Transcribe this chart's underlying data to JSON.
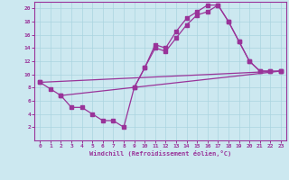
{
  "bg_color": "#cce8f0",
  "grid_color": "#aad4e0",
  "line_color": "#993399",
  "xlabel": "Windchill (Refroidissement éolien,°C)",
  "xlim": [
    -0.5,
    23.5
  ],
  "ylim": [
    0,
    21
  ],
  "xticks": [
    0,
    1,
    2,
    3,
    4,
    5,
    6,
    7,
    8,
    9,
    10,
    11,
    12,
    13,
    14,
    15,
    16,
    17,
    18,
    19,
    20,
    21,
    22,
    23
  ],
  "yticks": [
    2,
    4,
    6,
    8,
    10,
    12,
    14,
    16,
    18,
    20
  ],
  "line_a": {
    "x": [
      0,
      23
    ],
    "y": [
      8.8,
      10.5
    ]
  },
  "line_b": {
    "x": [
      2,
      23
    ],
    "y": [
      6.8,
      10.5
    ]
  },
  "line_c": {
    "x": [
      0,
      1,
      2,
      3,
      4,
      5,
      6,
      7,
      8,
      9,
      10,
      11,
      12,
      13,
      14,
      15,
      16,
      17,
      18,
      19,
      20,
      21,
      22
    ],
    "y": [
      8.8,
      7.8,
      6.8,
      5.0,
      5.0,
      4.0,
      3.0,
      3.0,
      2.0,
      8.0,
      11.0,
      14.5,
      14.0,
      16.5,
      18.5,
      19.5,
      20.5,
      20.5,
      18.0,
      15.0,
      12.0,
      10.5,
      10.5
    ]
  },
  "line_d": {
    "x": [
      9,
      10,
      11,
      12,
      13,
      14,
      15,
      16,
      17,
      18,
      19,
      20,
      21,
      22,
      23
    ],
    "y": [
      8.0,
      11.0,
      14.0,
      13.5,
      15.5,
      17.5,
      19.0,
      19.5,
      20.5,
      18.0,
      15.0,
      12.0,
      10.5,
      10.5,
      10.5
    ]
  }
}
